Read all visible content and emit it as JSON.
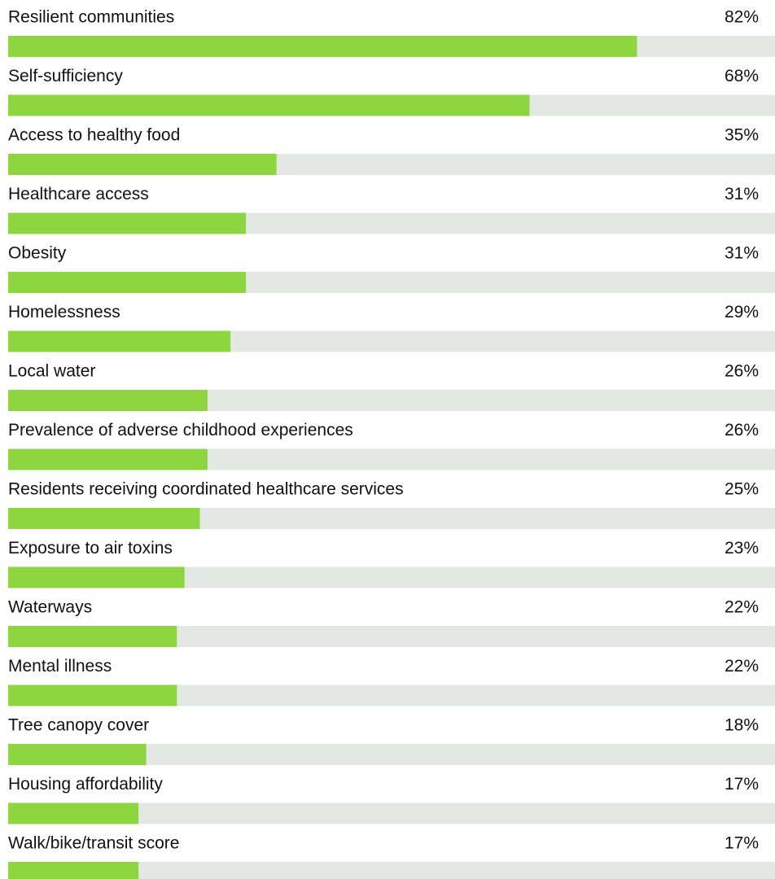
{
  "chart_data": {
    "type": "bar",
    "orientation": "horizontal",
    "categories": [
      "Resilient communities",
      "Self-sufficiency",
      "Access to healthy food",
      "Healthcare access",
      "Obesity",
      "Homelessness",
      "Local water",
      "Prevalence of adverse childhood experiences",
      "Residents receiving coordinated healthcare services",
      "Exposure to air toxins",
      "Waterways",
      "Mental illness",
      "Tree canopy cover",
      "Housing affordability",
      "Walk/bike/transit score"
    ],
    "values": [
      82,
      68,
      35,
      31,
      31,
      29,
      26,
      26,
      25,
      23,
      22,
      22,
      18,
      17,
      17
    ],
    "value_labels": [
      "82%",
      "68%",
      "35%",
      "31%",
      "31%",
      "29%",
      "26%",
      "26%",
      "25%",
      "23%",
      "22%",
      "22%",
      "18%",
      "17%",
      "17%"
    ],
    "xlim": [
      0,
      100
    ],
    "color": "#8ed63f",
    "track_color": "#e3e8e5"
  }
}
